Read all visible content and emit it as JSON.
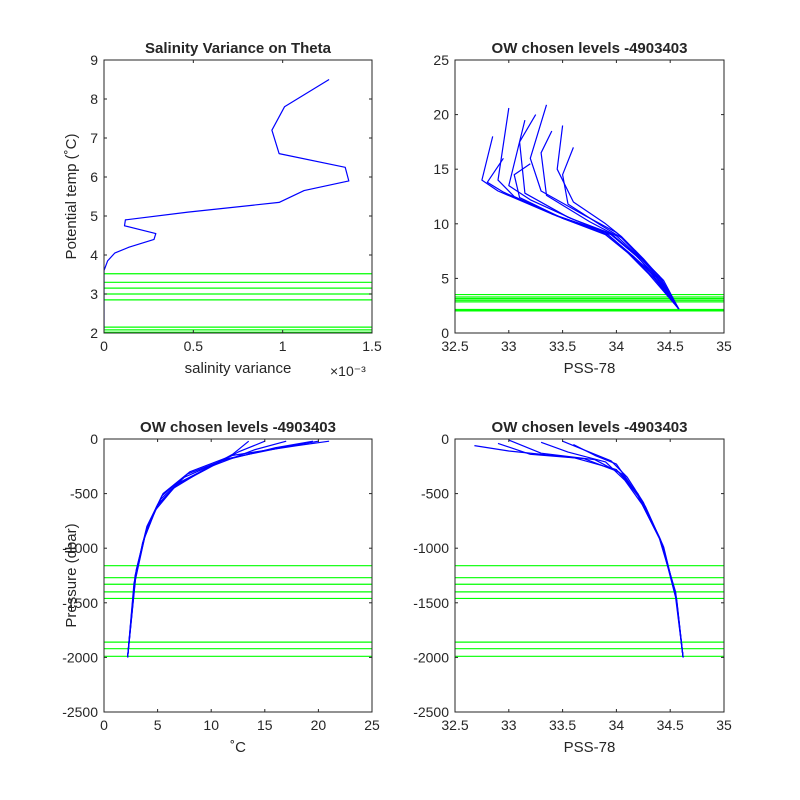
{
  "chart_data": [
    {
      "type": "line",
      "title": "Salinity Variance on Theta",
      "xlabel": "salinity variance",
      "ylabel": "Potential temp (˚C)",
      "xlim": [
        0,
        0.0015
      ],
      "ylim": [
        2,
        9
      ],
      "x_ticks": [
        "0",
        "0.5",
        "1",
        "1.5"
      ],
      "x_tick_values": [
        0,
        0.0005,
        0.001,
        0.0015
      ],
      "x_exponent_label": "×10⁻³",
      "y_ticks": [
        "2",
        "3",
        "4",
        "5",
        "6",
        "7",
        "8",
        "9"
      ],
      "y_tick_values": [
        2,
        3,
        4,
        5,
        6,
        7,
        8,
        9
      ],
      "series": [
        {
          "color": "#0000ff",
          "x": [
            0.00126,
            0.00101,
            0.00094,
            0.00098,
            0.00135,
            0.00137,
            0.00112,
            0.00098,
            0.00047,
            0.00012,
            0.000115,
            0.00029,
            0.00028,
            0.00014,
            6e-05,
            2e-05,
            0.0,
            0.0,
            0.0
          ],
          "y": [
            8.5,
            7.8,
            7.2,
            6.6,
            6.25,
            5.9,
            5.65,
            5.35,
            5.1,
            4.9,
            4.75,
            4.55,
            4.4,
            4.2,
            4.05,
            3.85,
            3.6,
            3.0,
            2.1
          ]
        }
      ],
      "hlines": {
        "color": "#00ff00",
        "values": [
          3.52,
          3.3,
          3.15,
          3.0,
          2.85,
          2.15,
          2.08,
          2.02
        ]
      }
    },
    {
      "type": "line",
      "title": "OW chosen levels -4903403",
      "xlabel": "PSS-78",
      "ylabel": "",
      "xlim": [
        32.5,
        35
      ],
      "ylim": [
        0,
        25
      ],
      "x_ticks": [
        "32.5",
        "33",
        "33.5",
        "34",
        "34.5",
        "35"
      ],
      "x_tick_values": [
        32.5,
        33,
        33.5,
        34,
        34.5,
        35
      ],
      "y_ticks": [
        "0",
        "5",
        "10",
        "15",
        "20",
        "25"
      ],
      "y_tick_values": [
        0,
        5,
        10,
        15,
        20,
        25
      ],
      "series": [
        {
          "color": "#0000ff",
          "x": [
            33.0,
            32.9,
            33.05,
            33.5,
            33.9,
            34.15,
            34.35,
            34.58
          ],
          "y": [
            20.6,
            14.0,
            12.5,
            10.5,
            9.0,
            7.0,
            5.0,
            2.2
          ]
        },
        {
          "color": "#0000ff",
          "x": [
            33.35,
            33.2,
            33.3,
            33.7,
            34.0,
            34.2,
            34.4,
            34.58
          ],
          "y": [
            20.9,
            16.0,
            13.0,
            10.8,
            9.2,
            7.2,
            5.2,
            2.2
          ]
        },
        {
          "color": "#0000ff",
          "x": [
            33.25,
            33.1,
            33.15,
            33.55,
            33.95,
            34.18,
            34.38,
            34.58
          ],
          "y": [
            20.0,
            17.5,
            12.8,
            10.6,
            9.0,
            7.1,
            5.1,
            2.2
          ]
        },
        {
          "color": "#0000ff",
          "x": [
            33.5,
            33.45,
            33.6,
            33.9,
            34.05,
            34.25,
            34.42,
            34.58
          ],
          "y": [
            19.0,
            15.0,
            12.0,
            10.0,
            8.8,
            6.8,
            4.9,
            2.2
          ]
        },
        {
          "color": "#0000ff",
          "x": [
            32.85,
            32.75,
            32.9,
            33.4,
            33.85,
            34.1,
            34.3,
            34.58
          ],
          "y": [
            18.0,
            14.0,
            13.0,
            10.9,
            9.4,
            7.4,
            5.4,
            2.2
          ]
        },
        {
          "color": "#0000ff",
          "x": [
            33.15,
            33.0,
            33.2,
            33.6,
            33.95,
            34.2,
            34.36,
            34.58
          ],
          "y": [
            19.5,
            13.5,
            12.2,
            10.4,
            9.1,
            7.0,
            5.0,
            2.2
          ]
        },
        {
          "color": "#0000ff",
          "x": [
            33.4,
            33.3,
            33.35,
            33.75,
            34.0,
            34.22,
            34.4,
            34.58
          ],
          "y": [
            18.5,
            16.5,
            12.6,
            10.2,
            8.9,
            6.9,
            5.0,
            2.2
          ]
        },
        {
          "color": "#0000ff",
          "x": [
            33.6,
            33.5,
            33.55,
            33.85,
            34.05,
            34.25,
            34.44,
            34.58
          ],
          "y": [
            17.0,
            14.5,
            11.8,
            9.9,
            8.7,
            6.7,
            4.8,
            2.2
          ]
        },
        {
          "color": "#0000ff",
          "x": [
            32.95,
            32.8,
            32.95,
            33.45,
            33.9,
            34.12,
            34.34,
            34.58
          ],
          "y": [
            16.0,
            13.8,
            12.9,
            10.7,
            9.2,
            7.3,
            5.3,
            2.2
          ]
        },
        {
          "color": "#0000ff",
          "x": [
            33.2,
            33.05,
            33.1,
            33.5,
            33.92,
            34.15,
            34.37,
            34.58
          ],
          "y": [
            15.5,
            14.5,
            12.4,
            10.5,
            9.0,
            7.1,
            5.1,
            2.2
          ]
        }
      ],
      "hlines": {
        "color": "#00ff00",
        "values": [
          3.52,
          3.3,
          3.15,
          3.0,
          2.85,
          2.15,
          2.08,
          2.02
        ]
      }
    },
    {
      "type": "line",
      "title": "OW chosen levels -4903403",
      "xlabel": "˚C",
      "ylabel": "Pressure (dbar)",
      "xlim": [
        0,
        25
      ],
      "ylim": [
        -2500,
        0
      ],
      "x_ticks": [
        "0",
        "5",
        "10",
        "15",
        "20",
        "25"
      ],
      "x_tick_values": [
        0,
        5,
        10,
        15,
        20,
        25
      ],
      "y_ticks": [
        "0",
        "-500",
        "-1000",
        "-1500",
        "-2000",
        "-2500"
      ],
      "y_tick_values": [
        0,
        -500,
        -1000,
        -1500,
        -2000,
        -2500
      ],
      "series": [
        {
          "color": "#0000ff",
          "x": [
            21.0,
            18.0,
            12.0,
            8.0,
            5.5,
            4.0,
            3.0,
            2.2
          ],
          "y": [
            -20,
            -60,
            -150,
            -300,
            -500,
            -800,
            -1200,
            -2000
          ]
        },
        {
          "color": "#0000ff",
          "x": [
            19.5,
            16.0,
            11.0,
            7.5,
            5.3,
            3.9,
            2.9,
            2.2
          ],
          "y": [
            -20,
            -80,
            -200,
            -350,
            -550,
            -850,
            -1250,
            -2000
          ]
        },
        {
          "color": "#0000ff",
          "x": [
            17.0,
            14.0,
            10.0,
            7.0,
            5.0,
            3.8,
            2.9,
            2.2
          ],
          "y": [
            -20,
            -100,
            -250,
            -400,
            -600,
            -900,
            -1300,
            -2000
          ]
        },
        {
          "color": "#0000ff",
          "x": [
            15.0,
            12.5,
            9.5,
            6.8,
            4.9,
            3.7,
            2.8,
            2.2
          ],
          "y": [
            -20,
            -120,
            -280,
            -420,
            -620,
            -920,
            -1320,
            -2000
          ]
        },
        {
          "color": "#0000ff",
          "x": [
            20.0,
            17.0,
            11.5,
            7.8,
            5.4,
            4.0,
            3.0,
            2.2
          ],
          "y": [
            -20,
            -70,
            -180,
            -320,
            -520,
            -820,
            -1220,
            -2000
          ]
        },
        {
          "color": "#0000ff",
          "x": [
            13.5,
            12.0,
            9.0,
            6.5,
            4.8,
            3.6,
            2.8,
            2.2
          ],
          "y": [
            -20,
            -140,
            -300,
            -450,
            -650,
            -950,
            -1350,
            -2000
          ]
        }
      ],
      "hlines": {
        "color": "#00ff00",
        "values": [
          -1160,
          -1270,
          -1330,
          -1400,
          -1460,
          -1860,
          -1920,
          -1990
        ]
      }
    },
    {
      "type": "line",
      "title": "OW chosen levels -4903403",
      "xlabel": "PSS-78",
      "ylabel": "",
      "xlim": [
        32.5,
        35
      ],
      "ylim": [
        -2500,
        0
      ],
      "x_ticks": [
        "32.5",
        "33",
        "33.5",
        "34",
        "34.5",
        "35"
      ],
      "x_tick_values": [
        32.5,
        33,
        33.5,
        34,
        34.5,
        35
      ],
      "y_ticks": [
        "0",
        "-500",
        "-1000",
        "-1500",
        "-2000",
        "-2500"
      ],
      "y_tick_values": [
        0,
        -500,
        -1000,
        -1500,
        -2000,
        -2500
      ],
      "series": [
        {
          "color": "#0000ff",
          "x": [
            32.68,
            33.0,
            33.6,
            34.0,
            34.2,
            34.4,
            34.55,
            34.62
          ],
          "y": [
            -60,
            -110,
            -170,
            -280,
            -500,
            -900,
            -1400,
            -2000
          ]
        },
        {
          "color": "#0000ff",
          "x": [
            33.5,
            33.7,
            33.95,
            34.1,
            34.25,
            34.42,
            34.55,
            34.62
          ],
          "y": [
            -20,
            -100,
            -200,
            -350,
            -580,
            -950,
            -1450,
            -2000
          ]
        },
        {
          "color": "#0000ff",
          "x": [
            33.0,
            33.3,
            33.8,
            34.05,
            34.22,
            34.41,
            34.55,
            34.62
          ],
          "y": [
            -10,
            -130,
            -190,
            -320,
            -540,
            -920,
            -1420,
            -2000
          ]
        },
        {
          "color": "#0000ff",
          "x": [
            33.3,
            33.55,
            33.9,
            34.08,
            34.24,
            34.43,
            34.56,
            34.62
          ],
          "y": [
            -30,
            -120,
            -210,
            -380,
            -600,
            -970,
            -1470,
            -2000
          ]
        },
        {
          "color": "#0000ff",
          "x": [
            32.9,
            33.2,
            33.7,
            34.02,
            34.2,
            34.4,
            34.55,
            34.62
          ],
          "y": [
            -40,
            -140,
            -180,
            -300,
            -520,
            -910,
            -1410,
            -2000
          ]
        },
        {
          "color": "#0000ff",
          "x": [
            33.6,
            33.8,
            34.0,
            34.12,
            34.27,
            34.44,
            34.56,
            34.62
          ],
          "y": [
            -50,
            -150,
            -230,
            -400,
            -620,
            -990,
            -1480,
            -2000
          ]
        }
      ],
      "hlines": {
        "color": "#00ff00",
        "values": [
          -1160,
          -1270,
          -1330,
          -1400,
          -1460,
          -1860,
          -1920,
          -1990
        ]
      }
    }
  ]
}
